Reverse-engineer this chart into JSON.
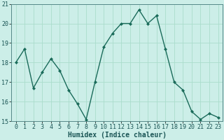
{
  "x": [
    0,
    1,
    2,
    3,
    4,
    5,
    6,
    7,
    8,
    9,
    10,
    11,
    12,
    13,
    14,
    15,
    16,
    17,
    18,
    19,
    20,
    21,
    22,
    23
  ],
  "y": [
    18.0,
    18.7,
    16.7,
    17.5,
    18.2,
    17.6,
    16.6,
    15.9,
    15.1,
    17.0,
    18.8,
    19.5,
    20.0,
    20.0,
    20.7,
    20.0,
    20.4,
    18.7,
    17.0,
    16.6,
    15.5,
    15.1,
    15.4,
    15.2
  ],
  "line_color": "#1a6b5a",
  "marker": "D",
  "marker_size": 2,
  "line_width": 1.0,
  "bg_color": "#cceee8",
  "grid_color": "#aaddcc",
  "xlabel": "Humidex (Indice chaleur)",
  "ylim": [
    15,
    21
  ],
  "xlim": [
    -0.5,
    23.5
  ],
  "yticks": [
    15,
    16,
    17,
    18,
    19,
    20,
    21
  ],
  "xticks": [
    0,
    1,
    2,
    3,
    4,
    5,
    6,
    7,
    8,
    9,
    10,
    11,
    12,
    13,
    14,
    15,
    16,
    17,
    18,
    19,
    20,
    21,
    22,
    23
  ],
  "xlabel_fontsize": 7,
  "tick_fontsize": 6,
  "spine_color": "#558888"
}
